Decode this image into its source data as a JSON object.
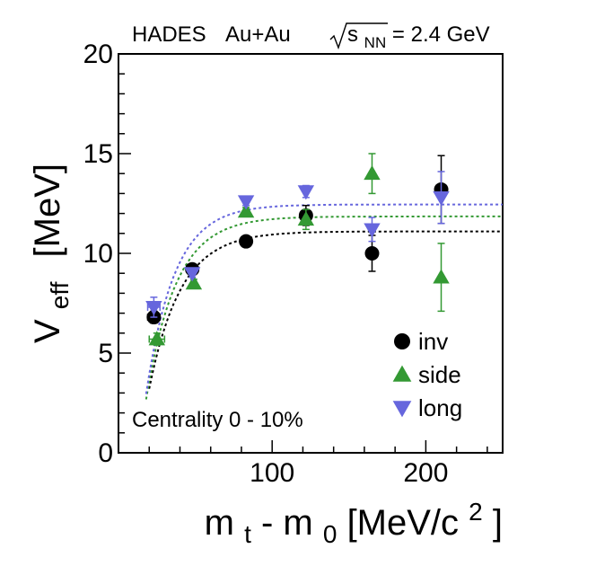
{
  "chart_data": {
    "type": "scatter",
    "title": {
      "experiment": "HADES",
      "system": "Au+Au",
      "energy_sqrt": "s",
      "energy_sub": "NN",
      "energy_value": " = 2.4 GeV"
    },
    "ylabel": {
      "main": "V",
      "sub": "eff",
      "unit": "[MeV]"
    },
    "xlabel": {
      "main1": "m",
      "sub1": "t",
      "mid": " - m",
      "sub2": "0",
      "unit": " [MeV/c",
      "sup": "2",
      "close": "]"
    },
    "annotation": "Centrality 0 - 10%",
    "xlim": [
      0,
      250
    ],
    "ylim": [
      0,
      20
    ],
    "x_ticks": [
      100,
      200
    ],
    "x_tick_labels": [
      "100",
      "200"
    ],
    "y_ticks": [
      0,
      5,
      10,
      15,
      20
    ],
    "y_tick_labels": [
      "0",
      "5",
      "10",
      "15",
      "20"
    ],
    "grid": false,
    "legend_position": "bottom-right",
    "series": [
      {
        "name": "inv",
        "marker": "circle",
        "color": "#000000",
        "points": [
          {
            "x": 23,
            "y": 6.8,
            "xerr": 4,
            "yerr": 0.3
          },
          {
            "x": 48,
            "y": 9.2,
            "xerr": 0,
            "yerr": 0.2
          },
          {
            "x": 83,
            "y": 10.6,
            "xerr": 0,
            "yerr": 0.2
          },
          {
            "x": 122,
            "y": 11.9,
            "xerr": 0,
            "yerr": 0.5
          },
          {
            "x": 165,
            "y": 10.0,
            "xerr": 0,
            "yerr": 0.9
          },
          {
            "x": 210,
            "y": 13.2,
            "xerr": 0,
            "yerr": 1.7
          }
        ],
        "fit": {
          "A": 11.1,
          "c": 13,
          "tau": 20.5,
          "color": "#000000"
        }
      },
      {
        "name": "side",
        "marker": "triangle-up",
        "color": "#339933",
        "points": [
          {
            "x": 25,
            "y": 5.7,
            "xerr": 5,
            "yerr": 0.3
          },
          {
            "x": 49,
            "y": 8.5,
            "xerr": 0,
            "yerr": 0.2
          },
          {
            "x": 83,
            "y": 12.1,
            "xerr": 0,
            "yerr": 0.2
          },
          {
            "x": 122,
            "y": 11.7,
            "xerr": 0,
            "yerr": 0.5
          },
          {
            "x": 165,
            "y": 14.0,
            "xerr": 0,
            "yerr": 1.0
          },
          {
            "x": 210,
            "y": 8.8,
            "xerr": 0,
            "yerr": 1.7
          }
        ],
        "fit": {
          "A": 11.85,
          "c": 13,
          "tau": 19.5,
          "color": "#339933"
        }
      },
      {
        "name": "long",
        "marker": "triangle-down",
        "color": "#6666dd",
        "points": [
          {
            "x": 23,
            "y": 7.3,
            "xerr": 4,
            "yerr": 0.5
          },
          {
            "x": 48,
            "y": 9.0,
            "xerr": 0,
            "yerr": 0.2
          },
          {
            "x": 83,
            "y": 12.6,
            "xerr": 0,
            "yerr": 0.2
          },
          {
            "x": 122,
            "y": 13.1,
            "xerr": 0,
            "yerr": 0.3
          },
          {
            "x": 165,
            "y": 11.2,
            "xerr": 0,
            "yerr": 0.6
          },
          {
            "x": 210,
            "y": 12.8,
            "xerr": 0,
            "yerr": 1.3
          }
        ],
        "fit": {
          "A": 12.45,
          "c": 13,
          "tau": 18.5,
          "color": "#6666dd"
        }
      }
    ]
  }
}
